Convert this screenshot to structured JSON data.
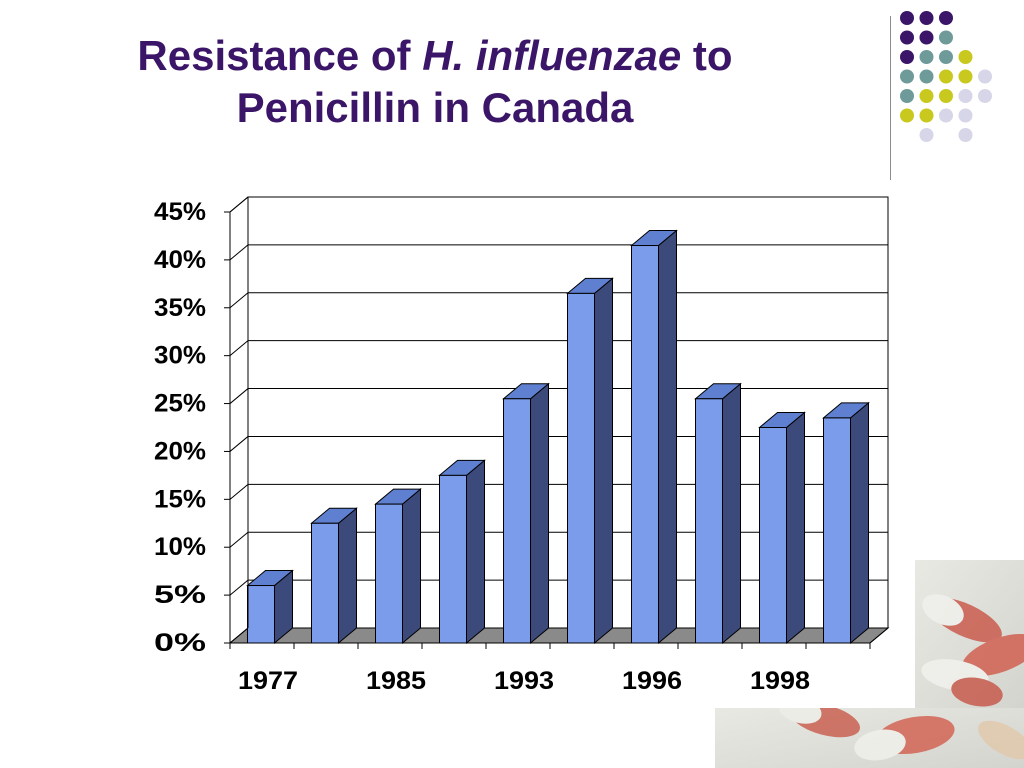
{
  "slide": {
    "title_part1": "Resistance of ",
    "title_italic": "H. influenzae",
    "title_part2": " to",
    "title_line2": "Penicillin in Canada"
  },
  "decoration": {
    "dot_colors": [
      "#3a1568",
      "#6f9a9a",
      "#c8c81e",
      "#d6d6e8"
    ],
    "dot_grid": [
      [
        0,
        0,
        0,
        -1,
        -1
      ],
      [
        0,
        0,
        1,
        -1,
        -1
      ],
      [
        0,
        1,
        1,
        2,
        -1
      ],
      [
        1,
        1,
        2,
        2,
        3
      ],
      [
        1,
        2,
        2,
        3,
        3
      ],
      [
        2,
        2,
        3,
        3,
        -1
      ],
      [
        -1,
        3,
        -1,
        3,
        -1
      ]
    ],
    "corner_image": "pills-photo"
  },
  "chart_data": {
    "type": "bar",
    "style": "3d-column",
    "title": "",
    "xlabel": "",
    "ylabel": "",
    "categories": [
      "1977",
      "",
      "1985",
      "",
      "1993",
      "",
      "1996",
      "",
      "1998",
      ""
    ],
    "values": [
      6,
      12.5,
      14.5,
      17.5,
      25.5,
      36.5,
      41.5,
      25.5,
      22.5,
      23.5
    ],
    "ylim": [
      0,
      45
    ],
    "yticks": [
      "0%",
      "5%",
      "10%",
      "15%",
      "20%",
      "25%",
      "30%",
      "35%",
      "40%",
      "45%"
    ],
    "ytick_step": 5,
    "grid": true,
    "legend": "none",
    "colors": {
      "bar_front": "#7b9cea",
      "bar_side": "#3b4a7a",
      "bar_top": "#5f7fd0",
      "floor": "#8a8a8a",
      "grid": "#000000"
    }
  }
}
